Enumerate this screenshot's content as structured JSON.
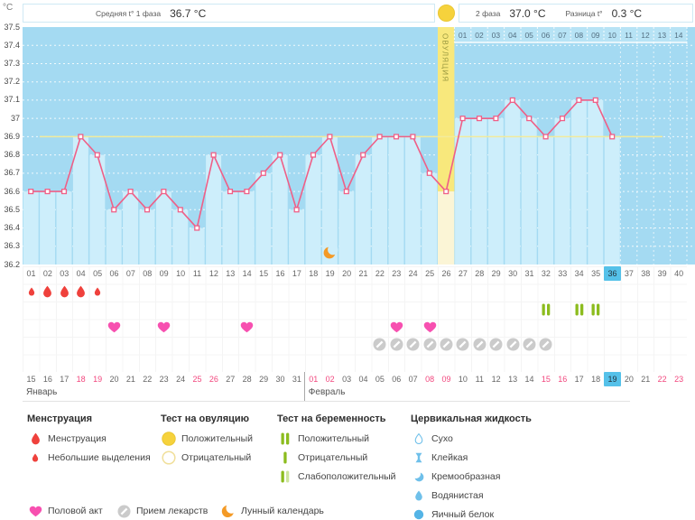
{
  "header": {
    "unit": "°C",
    "phase1_label": "Средняя t° 1 фаза",
    "phase1_value": "36.7 °C",
    "phase2_label": "2 фаза",
    "phase2_value": "37.0 °C",
    "diff_label": "Разница t°",
    "diff_value": "0.3 °C",
    "ovulation_test_icon": "yellow-circle"
  },
  "chart_data": {
    "type": "line",
    "title": "Базальная температура",
    "ylabel": "°C",
    "ylim": [
      36.2,
      37.5
    ],
    "y_ticks": [
      "37.5",
      "37.4",
      "37.3",
      "37.2",
      "37.1",
      "37",
      "36.9",
      "36.8",
      "36.7",
      "36.6",
      "36.5",
      "36.4",
      "36.3",
      "36.2"
    ],
    "x_days_total": 40,
    "x": [
      1,
      2,
      3,
      4,
      5,
      6,
      7,
      8,
      9,
      10,
      11,
      12,
      13,
      14,
      15,
      16,
      17,
      18,
      19,
      20,
      21,
      22,
      23,
      24,
      25,
      26,
      27,
      28,
      29,
      30,
      31,
      32,
      33,
      34,
      35,
      36
    ],
    "values": [
      36.6,
      36.6,
      36.6,
      36.9,
      36.8,
      36.5,
      36.6,
      36.5,
      36.6,
      36.5,
      36.4,
      36.8,
      36.6,
      36.6,
      36.7,
      36.8,
      36.5,
      36.8,
      36.9,
      36.6,
      36.8,
      36.9,
      36.9,
      36.9,
      36.7,
      36.6,
      37.0,
      37.0,
      37.0,
      37.1,
      37.0,
      36.9,
      37.0,
      37.1,
      37.1,
      36.9
    ],
    "coverline": 36.9,
    "ovulation_day": 26,
    "ovulation_band_label": "ОВУЛЯЦИЯ",
    "dpo_labels": [
      "01",
      "02",
      "03",
      "04",
      "05",
      "06",
      "07",
      "08",
      "09",
      "10",
      "11",
      "12",
      "13",
      "14"
    ],
    "current_cycle_day": 36,
    "moon_day": 19,
    "grid": "dotted"
  },
  "events": {
    "menstruation": [
      {
        "day": 1,
        "size": "small"
      },
      {
        "day": 2,
        "size": "large"
      },
      {
        "day": 3,
        "size": "large"
      },
      {
        "day": 4,
        "size": "large"
      },
      {
        "day": 5,
        "size": "small"
      }
    ],
    "pregnancy_test_positive_days": [
      32,
      34,
      35
    ],
    "intercourse_days": [
      6,
      9,
      14,
      23,
      25
    ],
    "medication_days": [
      22,
      23,
      24,
      25,
      26,
      27,
      28,
      29,
      30,
      31,
      32
    ]
  },
  "calendar": {
    "day_numbers": [
      "01",
      "02",
      "03",
      "04",
      "05",
      "06",
      "07",
      "08",
      "09",
      "10",
      "11",
      "12",
      "13",
      "14",
      "15",
      "16",
      "17",
      "18",
      "19",
      "20",
      "21",
      "22",
      "23",
      "24",
      "25",
      "26",
      "27",
      "28",
      "29",
      "30",
      "31",
      "32",
      "33",
      "34",
      "35",
      "36",
      "37",
      "38",
      "39",
      "40"
    ],
    "dates": [
      {
        "d": "15",
        "w": false
      },
      {
        "d": "16",
        "w": false
      },
      {
        "d": "17",
        "w": false
      },
      {
        "d": "18",
        "w": true
      },
      {
        "d": "19",
        "w": true
      },
      {
        "d": "20",
        "w": false
      },
      {
        "d": "21",
        "w": false
      },
      {
        "d": "22",
        "w": false
      },
      {
        "d": "23",
        "w": false
      },
      {
        "d": "24",
        "w": false
      },
      {
        "d": "25",
        "w": true
      },
      {
        "d": "26",
        "w": true
      },
      {
        "d": "27",
        "w": false
      },
      {
        "d": "28",
        "w": false
      },
      {
        "d": "29",
        "w": false
      },
      {
        "d": "30",
        "w": false
      },
      {
        "d": "31",
        "w": false
      },
      {
        "d": "01",
        "w": true
      },
      {
        "d": "02",
        "w": true
      },
      {
        "d": "03",
        "w": false
      },
      {
        "d": "04",
        "w": false
      },
      {
        "d": "05",
        "w": false
      },
      {
        "d": "06",
        "w": false
      },
      {
        "d": "07",
        "w": false
      },
      {
        "d": "08",
        "w": true
      },
      {
        "d": "09",
        "w": true
      },
      {
        "d": "10",
        "w": false
      },
      {
        "d": "11",
        "w": false
      },
      {
        "d": "12",
        "w": false
      },
      {
        "d": "13",
        "w": false
      },
      {
        "d": "14",
        "w": false
      },
      {
        "d": "15",
        "w": true
      },
      {
        "d": "16",
        "w": true
      },
      {
        "d": "17",
        "w": false
      },
      {
        "d": "18",
        "w": false
      },
      {
        "d": "19",
        "w": false,
        "today": true
      },
      {
        "d": "20",
        "w": false
      },
      {
        "d": "21",
        "w": false
      },
      {
        "d": "22",
        "w": true
      },
      {
        "d": "23",
        "w": true
      }
    ],
    "months": [
      {
        "name": "Январь",
        "start_day": 1
      },
      {
        "name": "Февраль",
        "start_day": 18
      }
    ]
  },
  "legend": {
    "columns": [
      {
        "title": "Менструация",
        "items": [
          {
            "icon": "drop-large",
            "label": "Менструация"
          },
          {
            "icon": "drop-small",
            "label": "Небольшие выделения"
          }
        ]
      },
      {
        "title": "Тест на овуляцию",
        "items": [
          {
            "icon": "circle-yellow",
            "label": "Положительный"
          },
          {
            "icon": "circle-outline",
            "label": "Отрицательный"
          }
        ]
      },
      {
        "title": "Тест на беременность",
        "items": [
          {
            "icon": "bars-positive",
            "label": "Положительный"
          },
          {
            "icon": "bar-negative",
            "label": "Отрицательный"
          },
          {
            "icon": "bars-weak",
            "label": "Слабоположительный"
          }
        ]
      },
      {
        "title": "Цервикальная жидкость",
        "items": [
          {
            "icon": "cf-dry",
            "label": "Сухо"
          },
          {
            "icon": "cf-sticky",
            "label": "Клейкая"
          },
          {
            "icon": "cf-creamy",
            "label": "Кремообразная"
          },
          {
            "icon": "cf-watery",
            "label": "Водянистая"
          },
          {
            "icon": "cf-eggwhite",
            "label": "Яичный белок"
          }
        ]
      }
    ],
    "bottom": [
      {
        "icon": "heart",
        "label": "Половой акт"
      },
      {
        "icon": "pill",
        "label": "Прием лекарств"
      },
      {
        "icon": "moon",
        "label": "Лунный календарь"
      }
    ]
  },
  "colors": {
    "plot_bg": "#a4daf2",
    "fill": "#cdeefb",
    "dpo_bg": "#b7e3f5",
    "line": "#ef5f87",
    "coverline": "#f2eb9c",
    "band_top": "#f8e87c",
    "band_bottom": "#fbf5d6",
    "band_text": "#98983f",
    "highlight": "#55c1e9",
    "weekend": "#f2477e",
    "drop": "#ef413c",
    "heart": "#f750b0",
    "test_green": "#8cbc1e",
    "test_green_light": "#cde59c",
    "pill": "#cbcbcb",
    "moon": "#f49a26",
    "cervical": "#6fc0ea",
    "eggwhite": "#54b4e6"
  }
}
